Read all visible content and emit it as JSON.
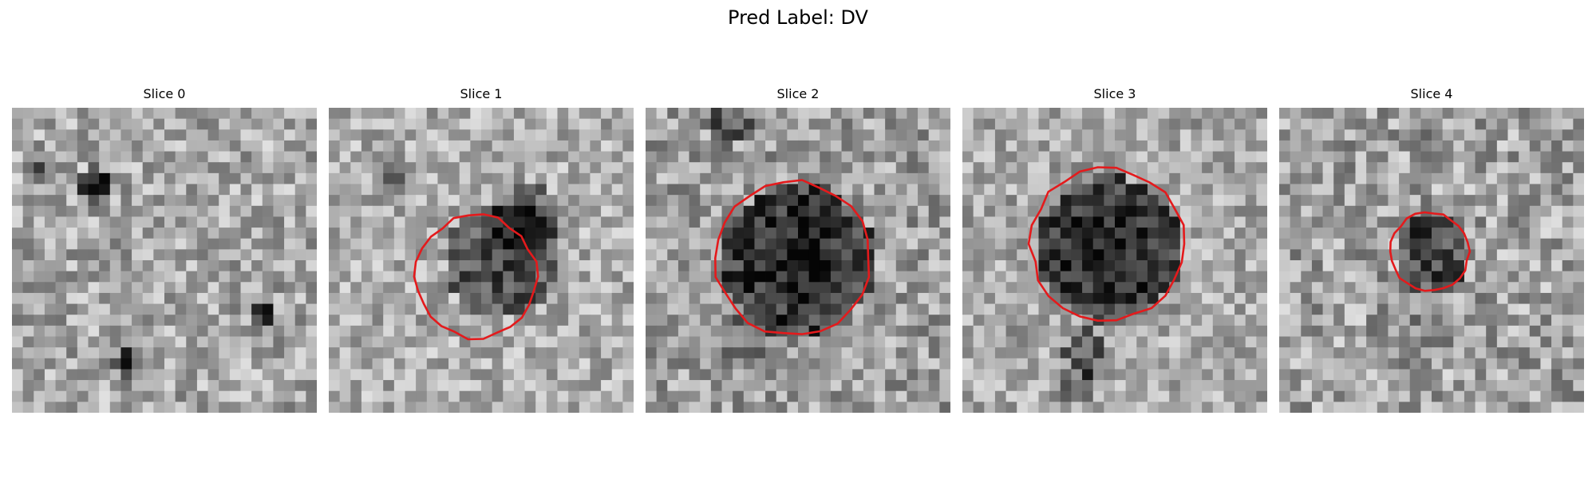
{
  "figure": {
    "title": "Pred Label: DV"
  },
  "panels": [
    {
      "title": "Slice 0",
      "has_contour": false
    },
    {
      "title": "Slice 1",
      "has_contour": true
    },
    {
      "title": "Slice 2",
      "has_contour": true
    },
    {
      "title": "Slice 3",
      "has_contour": true
    },
    {
      "title": "Slice 4",
      "has_contour": true
    }
  ],
  "colors": {
    "contour": "#e41a1c",
    "background": "#ffffff"
  }
}
